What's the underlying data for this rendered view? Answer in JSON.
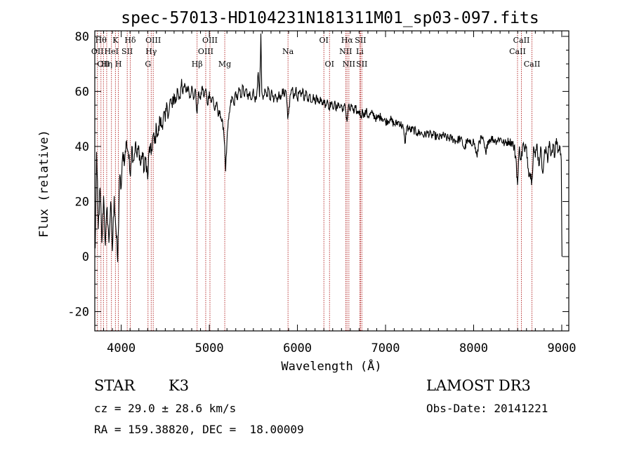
{
  "chart_data": {
    "type": "line",
    "title": "spec-57013-HD104231N181311M01_sp03-097.fits",
    "xlabel": "Wavelength (Å)",
    "ylabel": "Flux (relative)",
    "xlim": [
      3700,
      9080
    ],
    "ylim": [
      -27,
      82
    ],
    "xticks": [
      4000,
      5000,
      6000,
      7000,
      8000,
      9000
    ],
    "yticks": [
      -20,
      0,
      20,
      40,
      60,
      80
    ],
    "grid": false,
    "colors": {
      "spectrum": "#000000",
      "lines": "#b22222",
      "axes": "#000000"
    },
    "spectrum_anchors": [
      [
        3705,
        3
      ],
      [
        3720,
        38
      ],
      [
        3740,
        10
      ],
      [
        3760,
        25
      ],
      [
        3780,
        5
      ],
      [
        3800,
        22
      ],
      [
        3820,
        4
      ],
      [
        3840,
        18
      ],
      [
        3860,
        5
      ],
      [
        3880,
        20
      ],
      [
        3900,
        2
      ],
      [
        3920,
        22
      ],
      [
        3940,
        10
      ],
      [
        3960,
        -2
      ],
      [
        3980,
        28
      ],
      [
        4000,
        25
      ],
      [
        4020,
        38
      ],
      [
        4040,
        35
      ],
      [
        4060,
        42
      ],
      [
        4080,
        38
      ],
      [
        4100,
        30
      ],
      [
        4120,
        40
      ],
      [
        4140,
        35
      ],
      [
        4160,
        41
      ],
      [
        4180,
        36
      ],
      [
        4200,
        40
      ],
      [
        4220,
        33
      ],
      [
        4240,
        38
      ],
      [
        4260,
        31
      ],
      [
        4280,
        36
      ],
      [
        4300,
        28
      ],
      [
        4320,
        40
      ],
      [
        4340,
        37
      ],
      [
        4360,
        44
      ],
      [
        4380,
        41
      ],
      [
        4400,
        47
      ],
      [
        4420,
        44
      ],
      [
        4440,
        50
      ],
      [
        4460,
        47
      ],
      [
        4480,
        52
      ],
      [
        4500,
        49
      ],
      [
        4520,
        55
      ],
      [
        4540,
        52
      ],
      [
        4560,
        57
      ],
      [
        4580,
        54
      ],
      [
        4600,
        59
      ],
      [
        4620,
        56
      ],
      [
        4640,
        61
      ],
      [
        4660,
        58
      ],
      [
        4680,
        62
      ],
      [
        4700,
        59
      ],
      [
        4720,
        63
      ],
      [
        4740,
        60
      ],
      [
        4760,
        62
      ],
      [
        4780,
        58
      ],
      [
        4800,
        62
      ],
      [
        4820,
        57
      ],
      [
        4840,
        61
      ],
      [
        4861,
        52
      ],
      [
        4880,
        60
      ],
      [
        4900,
        57
      ],
      [
        4920,
        62
      ],
      [
        4940,
        58
      ],
      [
        4960,
        61
      ],
      [
        4980,
        55
      ],
      [
        5000,
        60
      ],
      [
        5020,
        56
      ],
      [
        5040,
        58
      ],
      [
        5060,
        53
      ],
      [
        5080,
        56
      ],
      [
        5100,
        51
      ],
      [
        5120,
        53
      ],
      [
        5140,
        49
      ],
      [
        5160,
        47
      ],
      [
        5175,
        40
      ],
      [
        5185,
        31
      ],
      [
        5200,
        42
      ],
      [
        5220,
        50
      ],
      [
        5240,
        55
      ],
      [
        5260,
        58
      ],
      [
        5280,
        55
      ],
      [
        5300,
        60
      ],
      [
        5320,
        57
      ],
      [
        5340,
        61
      ],
      [
        5360,
        58
      ],
      [
        5380,
        62
      ],
      [
        5400,
        58
      ],
      [
        5420,
        61
      ],
      [
        5440,
        57
      ],
      [
        5460,
        60
      ],
      [
        5480,
        57
      ],
      [
        5500,
        61
      ],
      [
        5520,
        56
      ],
      [
        5540,
        60
      ],
      [
        5555,
        67
      ],
      [
        5570,
        58
      ],
      [
        5585,
        81
      ],
      [
        5595,
        60
      ],
      [
        5610,
        57
      ],
      [
        5630,
        61
      ],
      [
        5650,
        58
      ],
      [
        5670,
        61
      ],
      [
        5690,
        57
      ],
      [
        5710,
        60
      ],
      [
        5730,
        56
      ],
      [
        5750,
        59
      ],
      [
        5770,
        56
      ],
      [
        5790,
        60
      ],
      [
        5810,
        57
      ],
      [
        5830,
        61
      ],
      [
        5850,
        58
      ],
      [
        5870,
        60
      ],
      [
        5890,
        50
      ],
      [
        5900,
        52
      ],
      [
        5920,
        59
      ],
      [
        5940,
        61
      ],
      [
        5960,
        58
      ],
      [
        5980,
        61
      ],
      [
        6000,
        57
      ],
      [
        6020,
        60
      ],
      [
        6040,
        58
      ],
      [
        6060,
        61
      ],
      [
        6080,
        57
      ],
      [
        6100,
        60
      ],
      [
        6120,
        57
      ],
      [
        6140,
        59
      ],
      [
        6160,
        56
      ],
      [
        6180,
        59
      ],
      [
        6200,
        56
      ],
      [
        6220,
        58
      ],
      [
        6240,
        56
      ],
      [
        6260,
        58
      ],
      [
        6280,
        55
      ],
      [
        6300,
        57
      ],
      [
        6320,
        55
      ],
      [
        6340,
        57
      ],
      [
        6360,
        54
      ],
      [
        6380,
        56
      ],
      [
        6400,
        54
      ],
      [
        6420,
        56
      ],
      [
        6440,
        53
      ],
      [
        6460,
        56
      ],
      [
        6480,
        54
      ],
      [
        6500,
        55
      ],
      [
        6520,
        53
      ],
      [
        6540,
        55
      ],
      [
        6563,
        49
      ],
      [
        6580,
        55
      ],
      [
        6600,
        53
      ],
      [
        6620,
        55
      ],
      [
        6640,
        52
      ],
      [
        6660,
        54
      ],
      [
        6680,
        52
      ],
      [
        6700,
        53
      ],
      [
        6720,
        51
      ],
      [
        6740,
        53
      ],
      [
        6760,
        51
      ],
      [
        6780,
        53
      ],
      [
        6800,
        51
      ],
      [
        6850,
        52
      ],
      [
        6900,
        50
      ],
      [
        6950,
        51
      ],
      [
        7000,
        49
      ],
      [
        7050,
        50
      ],
      [
        7100,
        48
      ],
      [
        7150,
        49
      ],
      [
        7200,
        47
      ],
      [
        7220,
        41
      ],
      [
        7240,
        47
      ],
      [
        7280,
        46
      ],
      [
        7320,
        46
      ],
      [
        7360,
        45
      ],
      [
        7400,
        45
      ],
      [
        7440,
        44
      ],
      [
        7480,
        45
      ],
      [
        7520,
        44
      ],
      [
        7560,
        44
      ],
      [
        7600,
        43
      ],
      [
        7650,
        44
      ],
      [
        7700,
        43
      ],
      [
        7750,
        43
      ],
      [
        7800,
        42
      ],
      [
        7850,
        43
      ],
      [
        7900,
        39
      ],
      [
        7920,
        42
      ],
      [
        7960,
        41
      ],
      [
        8000,
        42
      ],
      [
        8040,
        36
      ],
      [
        8060,
        42
      ],
      [
        8100,
        43
      ],
      [
        8140,
        37
      ],
      [
        8160,
        42
      ],
      [
        8200,
        43
      ],
      [
        8250,
        42
      ],
      [
        8300,
        43
      ],
      [
        8350,
        41
      ],
      [
        8400,
        42
      ],
      [
        8450,
        41
      ],
      [
        8480,
        36
      ],
      [
        8498,
        26
      ],
      [
        8520,
        40
      ],
      [
        8540,
        35
      ],
      [
        8560,
        41
      ],
      [
        8580,
        38
      ],
      [
        8600,
        40
      ],
      [
        8620,
        32
      ],
      [
        8642,
        30
      ],
      [
        8662,
        28
      ],
      [
        8680,
        40
      ],
      [
        8700,
        36
      ],
      [
        8720,
        41
      ],
      [
        8740,
        33
      ],
      [
        8760,
        40
      ],
      [
        8780,
        31
      ],
      [
        8800,
        36
      ],
      [
        8820,
        40
      ],
      [
        8840,
        34
      ],
      [
        8860,
        42
      ],
      [
        8880,
        37
      ],
      [
        8900,
        41
      ],
      [
        8920,
        36
      ],
      [
        8940,
        43
      ],
      [
        8960,
        38
      ],
      [
        8980,
        40
      ],
      [
        8995,
        35
      ],
      [
        9000,
        8
      ],
      [
        9003,
        0
      ]
    ],
    "spectral_lines": [
      {
        "wl": 3730,
        "label": "OII",
        "row": 2
      },
      {
        "wl": 3770,
        "label": "Hθ",
        "row": 1
      },
      {
        "wl": 3798,
        "label": "OII",
        "row": 3
      },
      {
        "wl": 3835,
        "label": "Hη",
        "row": 3
      },
      {
        "wl": 3889,
        "label": "HeI",
        "row": 2
      },
      {
        "wl": 3934,
        "label": "K",
        "row": 1
      },
      {
        "wl": 3968,
        "label": "H",
        "row": 3
      },
      {
        "wl": 4068,
        "label": "SII",
        "row": 2
      },
      {
        "wl": 4102,
        "label": "Hδ",
        "row": 1
      },
      {
        "wl": 4304,
        "label": "G",
        "row": 3
      },
      {
        "wl": 4340,
        "label": "Hγ",
        "row": 2
      },
      {
        "wl": 4363,
        "label": "OIII",
        "row": 1
      },
      {
        "wl": 4861,
        "label": "Hβ",
        "row": 3
      },
      {
        "wl": 4959,
        "label": "OIII",
        "row": 2
      },
      {
        "wl": 5007,
        "label": "OIII",
        "row": 1
      },
      {
        "wl": 5175,
        "label": "Mg",
        "row": 3
      },
      {
        "wl": 5893,
        "label": "Na",
        "row": 2
      },
      {
        "wl": 6300,
        "label": "OI",
        "row": 1
      },
      {
        "wl": 6364,
        "label": "OI",
        "row": 3
      },
      {
        "wl": 6548,
        "label": "NII",
        "row": 2
      },
      {
        "wl": 6563,
        "label": "Hα",
        "row": 1
      },
      {
        "wl": 6584,
        "label": "NII",
        "row": 3
      },
      {
        "wl": 6708,
        "label": "Li",
        "row": 2
      },
      {
        "wl": 6716,
        "label": "SII",
        "row": 1
      },
      {
        "wl": 6731,
        "label": "SII",
        "row": 3
      },
      {
        "wl": 8498,
        "label": "CaII",
        "row": 2
      },
      {
        "wl": 8542,
        "label": "CaII",
        "row": 1
      },
      {
        "wl": 8662,
        "label": "CaII",
        "row": 3
      }
    ]
  },
  "info": {
    "object_class": "STAR",
    "subclass": "K3",
    "survey": "LAMOST DR3",
    "redshift_line": "cz = 29.0 ± 28.6 km/s",
    "obs_date_line": "Obs-Date: 20141221",
    "coords_line": "RA = 159.38820, DEC =  18.00009"
  }
}
